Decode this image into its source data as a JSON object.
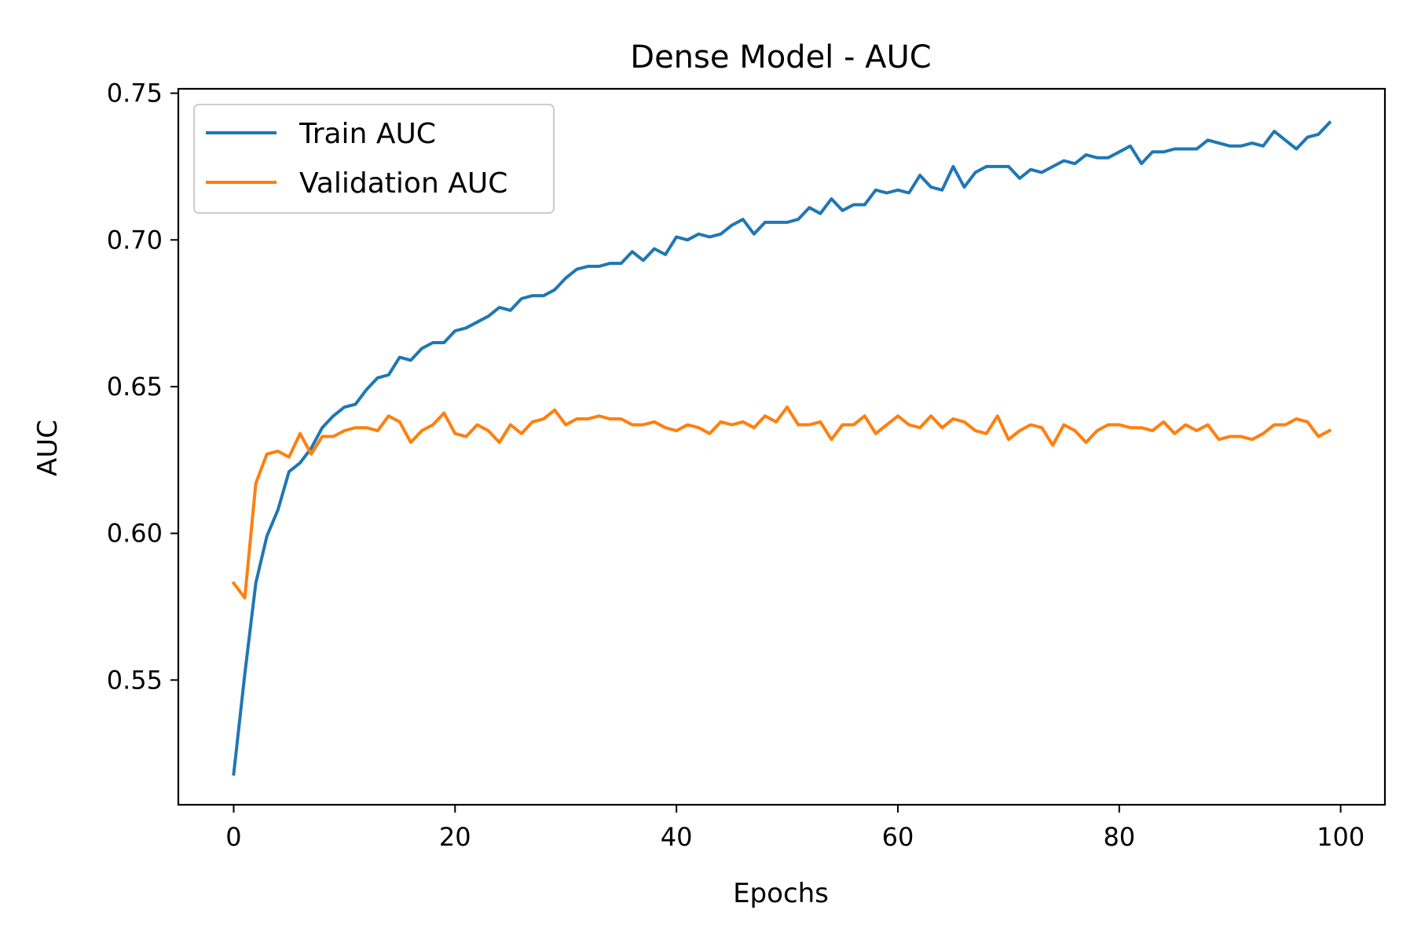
{
  "chart_data": {
    "type": "line",
    "title": "Dense Model - AUC",
    "xlabel": "Epochs",
    "ylabel": "AUC",
    "xlim": [
      -5,
      104
    ],
    "ylim": [
      0.5075,
      0.7515
    ],
    "xticks": [
      0,
      20,
      40,
      60,
      80,
      100
    ],
    "xtick_labels": [
      "0",
      "20",
      "40",
      "60",
      "80",
      "100"
    ],
    "yticks": [
      0.55,
      0.6,
      0.65,
      0.7,
      0.75
    ],
    "ytick_labels": [
      "0.55",
      "0.60",
      "0.65",
      "0.70",
      "0.75"
    ],
    "grid": false,
    "legend_position": "top-left",
    "x": [
      0,
      1,
      2,
      3,
      4,
      5,
      6,
      7,
      8,
      9,
      10,
      11,
      12,
      13,
      14,
      15,
      16,
      17,
      18,
      19,
      20,
      21,
      22,
      23,
      24,
      25,
      26,
      27,
      28,
      29,
      30,
      31,
      32,
      33,
      34,
      35,
      36,
      37,
      38,
      39,
      40,
      41,
      42,
      43,
      44,
      45,
      46,
      47,
      48,
      49,
      50,
      51,
      52,
      53,
      54,
      55,
      56,
      57,
      58,
      59,
      60,
      61,
      62,
      63,
      64,
      65,
      66,
      67,
      68,
      69,
      70,
      71,
      72,
      73,
      74,
      75,
      76,
      77,
      78,
      79,
      80,
      81,
      82,
      83,
      84,
      85,
      86,
      87,
      88,
      89,
      90,
      91,
      92,
      93,
      94,
      95,
      96,
      97,
      98,
      99
    ],
    "series": [
      {
        "name": "Train AUC",
        "color": "#1f77b4",
        "values": [
          0.518,
          0.552,
          0.583,
          0.599,
          0.608,
          0.621,
          0.624,
          0.629,
          0.636,
          0.64,
          0.643,
          0.644,
          0.649,
          0.653,
          0.654,
          0.66,
          0.659,
          0.663,
          0.665,
          0.665,
          0.669,
          0.67,
          0.672,
          0.674,
          0.677,
          0.676,
          0.68,
          0.681,
          0.681,
          0.683,
          0.687,
          0.69,
          0.691,
          0.691,
          0.692,
          0.692,
          0.696,
          0.693,
          0.697,
          0.695,
          0.701,
          0.7,
          0.702,
          0.701,
          0.702,
          0.705,
          0.707,
          0.702,
          0.706,
          0.706,
          0.706,
          0.707,
          0.711,
          0.709,
          0.714,
          0.71,
          0.712,
          0.712,
          0.717,
          0.716,
          0.717,
          0.716,
          0.722,
          0.718,
          0.717,
          0.725,
          0.718,
          0.723,
          0.725,
          0.725,
          0.725,
          0.721,
          0.724,
          0.723,
          0.725,
          0.727,
          0.726,
          0.729,
          0.728,
          0.728,
          0.73,
          0.732,
          0.726,
          0.73,
          0.73,
          0.731,
          0.731,
          0.731,
          0.734,
          0.733,
          0.732,
          0.732,
          0.733,
          0.732,
          0.737,
          0.734,
          0.731,
          0.735,
          0.736,
          0.74
        ]
      },
      {
        "name": "Validation AUC",
        "color": "#ff7f0e",
        "values": [
          0.583,
          0.578,
          0.617,
          0.627,
          0.628,
          0.626,
          0.634,
          0.627,
          0.633,
          0.633,
          0.635,
          0.636,
          0.636,
          0.635,
          0.64,
          0.638,
          0.631,
          0.635,
          0.637,
          0.641,
          0.634,
          0.633,
          0.637,
          0.635,
          0.631,
          0.637,
          0.634,
          0.638,
          0.639,
          0.642,
          0.637,
          0.639,
          0.639,
          0.64,
          0.639,
          0.639,
          0.637,
          0.637,
          0.638,
          0.636,
          0.635,
          0.637,
          0.636,
          0.634,
          0.638,
          0.637,
          0.638,
          0.636,
          0.64,
          0.638,
          0.643,
          0.637,
          0.637,
          0.638,
          0.632,
          0.637,
          0.637,
          0.64,
          0.634,
          0.637,
          0.64,
          0.637,
          0.636,
          0.64,
          0.636,
          0.639,
          0.638,
          0.635,
          0.634,
          0.64,
          0.632,
          0.635,
          0.637,
          0.636,
          0.63,
          0.637,
          0.635,
          0.631,
          0.635,
          0.637,
          0.637,
          0.636,
          0.636,
          0.635,
          0.638,
          0.634,
          0.637,
          0.635,
          0.637,
          0.632,
          0.633,
          0.633,
          0.632,
          0.634,
          0.637,
          0.637,
          0.639,
          0.638,
          0.633,
          0.635
        ]
      }
    ]
  }
}
